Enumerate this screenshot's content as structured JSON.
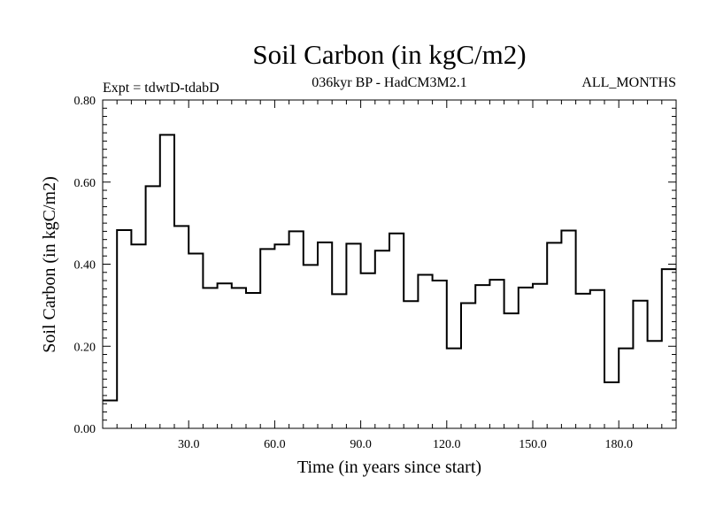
{
  "chart_data": {
    "type": "line",
    "style": "step",
    "title": "Soil Carbon (in kgC/m2)",
    "subtitle": "036kyr BP - HadCM3M2.1",
    "expt_label": "Expt = tdwtD-tdabD",
    "months_label": "ALL_MONTHS",
    "xlabel": "Time (in years since start)",
    "ylabel": "Soil Carbon (in kgC/m2)",
    "xlim": [
      0,
      200
    ],
    "ylim": [
      0.0,
      0.8
    ],
    "xticks": [
      30,
      60,
      90,
      120,
      150,
      180
    ],
    "xtick_labels": [
      "30.0",
      "60.0",
      "90.0",
      "120.0",
      "150.0",
      "180.0"
    ],
    "yticks": [
      0.0,
      0.2,
      0.4,
      0.6,
      0.8
    ],
    "ytick_labels": [
      "0.00",
      "0.20",
      "0.40",
      "0.60",
      "0.80"
    ],
    "step_width": 5,
    "series": [
      {
        "name": "Soil Carbon",
        "x": [
          0,
          5,
          10,
          15,
          20,
          25,
          30,
          35,
          40,
          45,
          50,
          55,
          60,
          65,
          70,
          75,
          80,
          85,
          90,
          95,
          100,
          105,
          110,
          115,
          120,
          125,
          130,
          135,
          140,
          145,
          150,
          155,
          160,
          165,
          170,
          175,
          180,
          185,
          190,
          195
        ],
        "values": [
          0.068,
          0.483,
          0.448,
          0.59,
          0.715,
          0.493,
          0.426,
          0.342,
          0.353,
          0.342,
          0.33,
          0.437,
          0.448,
          0.48,
          0.398,
          0.453,
          0.327,
          0.45,
          0.378,
          0.433,
          0.475,
          0.31,
          0.374,
          0.36,
          0.195,
          0.305,
          0.349,
          0.362,
          0.28,
          0.343,
          0.352,
          0.452,
          0.482,
          0.328,
          0.337,
          0.112,
          0.195,
          0.311,
          0.213,
          0.388
        ]
      }
    ]
  }
}
